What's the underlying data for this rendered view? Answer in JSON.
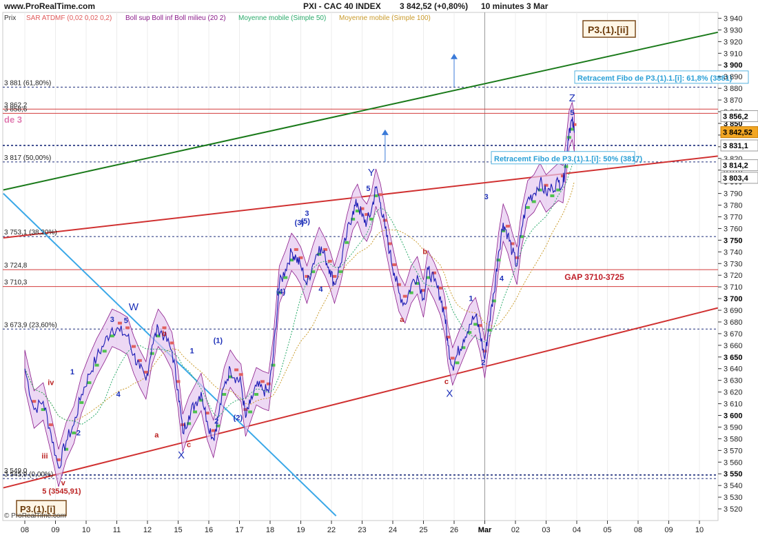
{
  "site_label": "www.ProRealTime.com",
  "title": "PXI - CAC 40 INDEX",
  "price_display": "3 842,52 (+0,80%)",
  "timeframe_display": "10 minutes  3 Mar",
  "copyright": "© ProRealTime.com",
  "legend": [
    {
      "text": "Prix",
      "color": "#333333"
    },
    {
      "text": "SAR ATDMF (0,02 0,02 0,2)",
      "color": "#e05a5a"
    },
    {
      "text": "Boll sup Boll inf Boll milieu (20 2)",
      "color": "#8a1a8a"
    },
    {
      "text": "Moyenne mobile (Simple 50)",
      "color": "#2aaa6a"
    },
    {
      "text": "Moyenne mobile (Simple 100)",
      "color": "#c99a2a"
    }
  ],
  "badges": {
    "top_right": "P3.(1).[ii]",
    "bottom_left": "P3.(1).[i]",
    "top_left_partial": "de 3"
  },
  "colors": {
    "price": "#1a1ab4",
    "boll_fill": "#e6c8ef",
    "boll_line": "#8a1a8a",
    "sar_up": "#4fc24f",
    "sar_down": "#e06060",
    "ma50": "#2aaa6a",
    "ma100": "#c99a2a",
    "green_trend": "#1a7a1a",
    "red_trend": "#d03030",
    "blue_trend": "#3aa8e8",
    "fibo_text": "#2a9fd6",
    "badge_bg": "#fff6e6",
    "badge_border": "#7a4a1a"
  },
  "chart_data": {
    "type": "line",
    "title": "PXI - CAC 40 INDEX",
    "ylim": [
      3510,
      3945
    ],
    "x_tick_labels": [
      "08",
      "09",
      "10",
      "11",
      "12",
      "15",
      "16",
      "17",
      "18",
      "19",
      "22",
      "23",
      "24",
      "25",
      "26",
      "Mar",
      "02",
      "03",
      "04",
      "05",
      "08",
      "09",
      "10"
    ],
    "y_ticks": [
      3520,
      3530,
      3540,
      3550,
      3560,
      3570,
      3580,
      3590,
      3600,
      3610,
      3620,
      3630,
      3640,
      3650,
      3660,
      3670,
      3680,
      3690,
      3700,
      3710,
      3720,
      3730,
      3740,
      3750,
      3760,
      3770,
      3780,
      3790,
      3800,
      3810,
      3820,
      3830,
      3840,
      3850,
      3860,
      3870,
      3880,
      3890,
      3900,
      3910,
      3920,
      3930,
      3940
    ],
    "y_tick_labels": [
      "3 520",
      "3 530",
      "3 540",
      "3 550",
      "3 560",
      "3 570",
      "3 580",
      "3 590",
      "3 600",
      "3 610",
      "3 620",
      "3 630",
      "3 640",
      "3 650",
      "3 660",
      "3 670",
      "3 680",
      "3 690",
      "3 700",
      "3 710",
      "3 720",
      "3 730",
      "3 740",
      "3 750",
      "3 760",
      "3 770",
      "3 780",
      "3 790",
      "3 800",
      "3 810",
      "3 820",
      "3 830",
      "3 840",
      "3 850",
      "3 860",
      "3 870",
      "3 880",
      "3 890",
      "3 900",
      "3 910",
      "3 920",
      "3 930",
      "3 940"
    ],
    "y_bold_ticks": [
      3550,
      3600,
      3650,
      3700,
      3750,
      3800,
      3850,
      3900
    ],
    "price_path": [
      [
        0,
        3640
      ],
      [
        0.3,
        3605
      ],
      [
        0.6,
        3612
      ],
      [
        0.85,
        3585
      ],
      [
        1.1,
        3555
      ],
      [
        1.35,
        3578
      ],
      [
        1.6,
        3592
      ],
      [
        1.85,
        3618
      ],
      [
        2.1,
        3635
      ],
      [
        2.35,
        3650
      ],
      [
        2.6,
        3662
      ],
      [
        2.85,
        3675
      ],
      [
        3.1,
        3672
      ],
      [
        3.35,
        3668
      ],
      [
        3.55,
        3652
      ],
      [
        3.75,
        3640
      ],
      [
        3.95,
        3630
      ],
      [
        4.15,
        3660
      ],
      [
        4.35,
        3675
      ],
      [
        4.55,
        3668
      ],
      [
        4.8,
        3655
      ],
      [
        5.0,
        3622
      ],
      [
        5.15,
        3585
      ],
      [
        5.35,
        3600
      ],
      [
        5.55,
        3610
      ],
      [
        5.75,
        3620
      ],
      [
        5.95,
        3595
      ],
      [
        6.15,
        3580
      ],
      [
        6.3,
        3598
      ],
      [
        6.5,
        3625
      ],
      [
        6.7,
        3640
      ],
      [
        6.9,
        3632
      ],
      [
        7.05,
        3628
      ],
      [
        7.2,
        3598
      ],
      [
        7.35,
        3610
      ],
      [
        7.55,
        3625
      ],
      [
        7.75,
        3622
      ],
      [
        7.95,
        3620
      ],
      [
        8.1,
        3650
      ],
      [
        8.3,
        3712
      ],
      [
        8.5,
        3725
      ],
      [
        8.7,
        3740
      ],
      [
        8.85,
        3735
      ],
      [
        9.0,
        3728
      ],
      [
        9.2,
        3712
      ],
      [
        9.4,
        3730
      ],
      [
        9.6,
        3745
      ],
      [
        9.8,
        3735
      ],
      [
        9.95,
        3725
      ],
      [
        10.1,
        3712
      ],
      [
        10.3,
        3730
      ],
      [
        10.5,
        3755
      ],
      [
        10.7,
        3775
      ],
      [
        10.85,
        3782
      ],
      [
        11.0,
        3770
      ],
      [
        11.15,
        3765
      ],
      [
        11.3,
        3775
      ],
      [
        11.45,
        3795
      ],
      [
        11.6,
        3782
      ],
      [
        11.75,
        3760
      ],
      [
        11.9,
        3740
      ],
      [
        12.05,
        3722
      ],
      [
        12.2,
        3705
      ],
      [
        12.4,
        3695
      ],
      [
        12.6,
        3712
      ],
      [
        12.8,
        3720
      ],
      [
        13.0,
        3700
      ],
      [
        13.15,
        3725
      ],
      [
        13.35,
        3715
      ],
      [
        13.55,
        3702
      ],
      [
        13.7,
        3685
      ],
      [
        13.8,
        3660
      ],
      [
        13.95,
        3642
      ],
      [
        14.1,
        3652
      ],
      [
        14.3,
        3665
      ],
      [
        14.5,
        3678
      ],
      [
        14.7,
        3685
      ],
      [
        14.85,
        3670
      ],
      [
        15.0,
        3648
      ],
      [
        15.15,
        3680
      ],
      [
        15.3,
        3705
      ],
      [
        15.45,
        3740
      ],
      [
        15.6,
        3765
      ],
      [
        15.75,
        3755
      ],
      [
        15.9,
        3740
      ],
      [
        16.05,
        3728
      ],
      [
        16.2,
        3760
      ],
      [
        16.4,
        3785
      ],
      [
        16.6,
        3790
      ],
      [
        16.8,
        3800
      ],
      [
        17.0,
        3790
      ],
      [
        17.2,
        3795
      ],
      [
        17.4,
        3800
      ],
      [
        17.55,
        3798
      ],
      [
        17.65,
        3820
      ],
      [
        17.75,
        3845
      ],
      [
        17.85,
        3852
      ],
      [
        17.92,
        3842
      ]
    ],
    "level_lines": [
      {
        "value": 3881,
        "label": "3 881 (61,80%)"
      },
      {
        "value": 3862.2,
        "label": "3 862,2"
      },
      {
        "value": 3858.6,
        "label": "3 858,6"
      },
      {
        "value": 3817,
        "label": "3 817 (50,00%)"
      },
      {
        "value": 3753.1,
        "label": "3 753,1 (38,20%)"
      },
      {
        "value": 3724.8,
        "label": "3 724,8"
      },
      {
        "value": 3710.3,
        "label": "3 710,3"
      },
      {
        "value": 3673.9,
        "label": "3 673,9 (23,60%)"
      },
      {
        "value": 3549.0,
        "label": "3 549,0"
      },
      {
        "value": 3545.9,
        "label": "3 545,9 (0,00%)"
      }
    ],
    "fibo_boxes": [
      {
        "text": "Retracemt Fibo de P3.(1).1.[i]: 61,8% (3881)"
      },
      {
        "text": "Retracemt Fibo de P3.(1).1.[i]: 50% (3817)"
      }
    ],
    "gap_label": "GAP 3710-3725",
    "price_tags": [
      {
        "value": 3856.2,
        "text": "3 856,2"
      },
      {
        "value": 3842.52,
        "text": "3 842,52"
      },
      {
        "value": 3831.1,
        "text": "3 831,1"
      },
      {
        "value": 3814.2,
        "text": "3 814,2"
      },
      {
        "value": 3803.4,
        "text": "3 803,4"
      }
    ],
    "wave_labels": [
      {
        "text": "Y",
        "x": 11.3,
        "y": 3805,
        "cls": "wave-big"
      },
      {
        "text": "5",
        "x": 11.2,
        "y": 3792,
        "cls": "wave"
      },
      {
        "text": "Z",
        "x": 17.85,
        "y": 3869,
        "cls": "wave-big"
      },
      {
        "text": "5",
        "x": 17.85,
        "y": 3857,
        "cls": "wave"
      },
      {
        "text": "W",
        "x": 3.55,
        "y": 3690,
        "cls": "wave-big"
      },
      {
        "text": "X",
        "x": 5.1,
        "y": 3563,
        "cls": "wave-big"
      },
      {
        "text": "X",
        "x": 13.85,
        "y": 3616,
        "cls": "wave-big"
      },
      {
        "text": "3",
        "x": 2.85,
        "y": 3680,
        "cls": "wave"
      },
      {
        "text": "5",
        "x": 3.3,
        "y": 3679,
        "cls": "wave"
      },
      {
        "text": "1",
        "x": 1.55,
        "y": 3635,
        "cls": "wave"
      },
      {
        "text": "2",
        "x": 1.75,
        "y": 3583,
        "cls": "wave"
      },
      {
        "text": "4",
        "x": 3.05,
        "y": 3616,
        "cls": "wave"
      },
      {
        "text": "1",
        "x": 5.45,
        "y": 3653,
        "cls": "wave"
      },
      {
        "text": "2",
        "x": 6.25,
        "y": 3593,
        "cls": "wave"
      },
      {
        "text": "(1)",
        "x": 6.3,
        "y": 3662,
        "cls": "wave"
      },
      {
        "text": "(2)",
        "x": 6.95,
        "y": 3596,
        "cls": "wave"
      },
      {
        "text": "(3)",
        "x": 8.95,
        "y": 3763,
        "cls": "wave"
      },
      {
        "text": "(4)",
        "x": 8.35,
        "y": 3704,
        "cls": "wave"
      },
      {
        "text": "3",
        "x": 9.2,
        "y": 3771,
        "cls": "wave"
      },
      {
        "text": "(5)",
        "x": 9.15,
        "y": 3764,
        "cls": "wave"
      },
      {
        "text": "4",
        "x": 9.65,
        "y": 3706,
        "cls": "wave"
      },
      {
        "text": "a",
        "x": 12.3,
        "y": 3680,
        "cls": "wave-red"
      },
      {
        "text": "b",
        "x": 13.05,
        "y": 3738,
        "cls": "wave-red"
      },
      {
        "text": "c",
        "x": 13.75,
        "y": 3627,
        "cls": "wave-red"
      },
      {
        "text": "1",
        "x": 14.55,
        "y": 3698,
        "cls": "wave"
      },
      {
        "text": "2",
        "x": 14.95,
        "y": 3643,
        "cls": "wave"
      },
      {
        "text": "3",
        "x": 15.05,
        "y": 3785,
        "cls": "wave"
      },
      {
        "text": "4",
        "x": 15.55,
        "y": 3715,
        "cls": "wave"
      },
      {
        "text": "b",
        "x": 4.55,
        "y": 3668,
        "cls": "wave-red"
      },
      {
        "text": "a",
        "x": 4.3,
        "y": 3581,
        "cls": "wave-red"
      },
      {
        "text": "c",
        "x": 5.35,
        "y": 3573,
        "cls": "wave-red"
      },
      {
        "text": "iv",
        "x": 0.85,
        "y": 3626,
        "cls": "wave-red"
      },
      {
        "text": "iii",
        "x": 0.65,
        "y": 3563,
        "cls": "wave-red"
      },
      {
        "text": "v",
        "x": 1.25,
        "y": 3540,
        "cls": "wave-red"
      },
      {
        "text": "5 (3545,91)",
        "x": 1.2,
        "y": 3533,
        "cls": "wave-red"
      }
    ]
  }
}
